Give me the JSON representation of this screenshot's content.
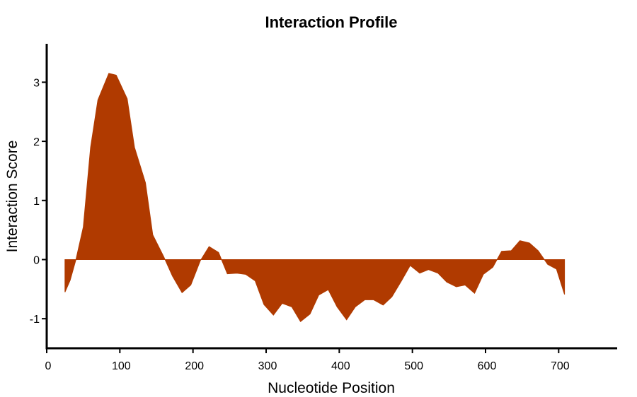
{
  "colors": {
    "fill": "#b03a00",
    "axis": "#000000",
    "background": "#ffffff"
  },
  "chart_data": {
    "type": "area",
    "title": "Interaction Profile",
    "xlabel": "Nucleotide Position",
    "ylabel": "Interaction Score",
    "xlim": [
      0,
      780
    ],
    "ylim": [
      -1.5,
      3.65
    ],
    "xticks": [
      0,
      100,
      200,
      300,
      400,
      500,
      600,
      700
    ],
    "yticks": [
      -1,
      0,
      1,
      2,
      3
    ],
    "grid": false,
    "series": [
      {
        "x": [
          25,
          32,
          40,
          50,
          60,
          70,
          85,
          95,
          110,
          120,
          135,
          145,
          160,
          172,
          185,
          197,
          210,
          222,
          235,
          247,
          260,
          272,
          285,
          297,
          310,
          322,
          335,
          347,
          360,
          372,
          385,
          397,
          410,
          422,
          435,
          447,
          460,
          472,
          485,
          497,
          510,
          522,
          535,
          547,
          560,
          572,
          585,
          597,
          610,
          622,
          635,
          647,
          660,
          672,
          685,
          697,
          708
        ],
        "y": [
          -0.55,
          -0.35,
          0.0,
          0.55,
          1.9,
          2.7,
          3.15,
          3.12,
          2.72,
          1.9,
          1.3,
          0.42,
          0.05,
          -0.28,
          -0.56,
          -0.43,
          -0.02,
          0.22,
          0.12,
          -0.24,
          -0.23,
          -0.25,
          -0.36,
          -0.76,
          -0.94,
          -0.74,
          -0.8,
          -1.05,
          -0.92,
          -0.6,
          -0.51,
          -0.8,
          -1.02,
          -0.8,
          -0.68,
          -0.68,
          -0.77,
          -0.63,
          -0.36,
          -0.1,
          -0.23,
          -0.17,
          -0.23,
          -0.38,
          -0.46,
          -0.43,
          -0.57,
          -0.25,
          -0.13,
          0.14,
          0.15,
          0.32,
          0.28,
          0.15,
          -0.08,
          -0.16,
          -0.59
        ]
      }
    ]
  }
}
